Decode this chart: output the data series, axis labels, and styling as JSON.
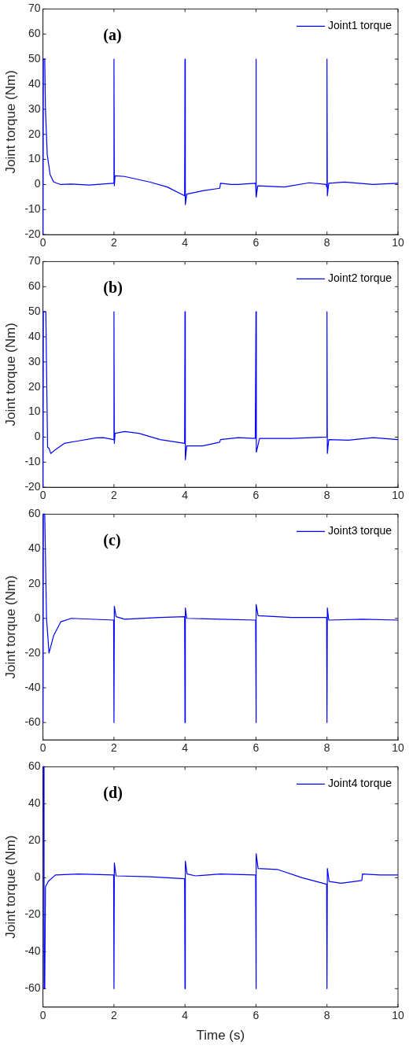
{
  "chart_data": [
    {
      "type": "line",
      "ylabel": "Joint torque (Nm)",
      "annotations": [
        "(a)"
      ],
      "legend": "top right",
      "grid": false,
      "xlim": [
        0,
        10
      ],
      "xticks": [
        0,
        2,
        4,
        6,
        8,
        10
      ],
      "ylim": [
        -20,
        70
      ],
      "yticks": [
        -20,
        -10,
        0,
        10,
        20,
        30,
        40,
        50,
        60,
        70
      ],
      "series": [
        {
          "name": "Joint1 torque",
          "color": "#0000ff",
          "x": [
            0,
            0.01,
            0.05,
            0.07,
            0.12,
            0.2,
            0.3,
            0.5,
            0.8,
            1.3,
            1.98,
            2.0,
            2.01,
            2.03,
            2.3,
            3,
            3.5,
            3.99,
            4.0,
            4.01,
            4.05,
            4.5,
            4.98,
            5.0,
            5.3,
            5.5,
            5.99,
            6.0,
            6.01,
            6.05,
            6.8,
            7.5,
            7.98,
            7.99,
            8.0,
            8.01,
            8.05,
            8.5,
            9.3,
            10
          ],
          "values": [
            -20,
            50,
            50,
            30,
            12,
            4,
            1,
            0,
            0.2,
            -0.2,
            0.5,
            50,
            -0.5,
            3.5,
            3.2,
            1,
            -1,
            -4.5,
            50,
            -8,
            -3.8,
            -2.5,
            -1.5,
            0.5,
            0,
            0,
            0.5,
            50,
            -5,
            -0.5,
            -1,
            0.7,
            0,
            -1,
            50,
            -4.5,
            0.5,
            1,
            0,
            0.5
          ]
        }
      ]
    },
    {
      "type": "line",
      "ylabel": "Joint torque (Nm)",
      "annotations": [
        "(b)"
      ],
      "legend": "top right",
      "grid": false,
      "xlim": [
        0,
        10
      ],
      "xticks": [
        0,
        2,
        4,
        6,
        8,
        10
      ],
      "ylim": [
        -20,
        70
      ],
      "yticks": [
        -20,
        -10,
        0,
        10,
        20,
        30,
        40,
        50,
        60,
        70
      ],
      "series": [
        {
          "name": "Joint2 torque",
          "color": "#0000ff",
          "x": [
            0,
            0.01,
            0.08,
            0.13,
            0.17,
            0.22,
            0.35,
            0.6,
            1,
            1.5,
            1.7,
            1.99,
            2.0,
            2.01,
            2.03,
            2.3,
            2.7,
            3.3,
            3.99,
            4.0,
            4.01,
            4.05,
            4.5,
            4.98,
            5.0,
            5.5,
            5.98,
            6.0,
            6.01,
            6.1,
            7,
            7.99,
            8.0,
            8.01,
            8.05,
            8.6,
            9.3,
            10
          ],
          "values": [
            -20,
            50,
            50,
            -4,
            -4.5,
            -6.5,
            -5,
            -2.5,
            -1.5,
            -0.3,
            -0.2,
            -1,
            50,
            -2.5,
            1.5,
            2.2,
            1.5,
            -1,
            -2.5,
            50,
            -9,
            -3.5,
            -3.5,
            -2,
            -1,
            -0.2,
            -0.5,
            50,
            -6,
            -0.5,
            -0.5,
            0,
            50,
            -6.5,
            -1,
            -1.2,
            -0.2,
            -1
          ]
        }
      ]
    },
    {
      "type": "line",
      "ylabel": "Joint torque (Nm)",
      "annotations": [
        "(c)"
      ],
      "legend": "top right",
      "grid": false,
      "xlim": [
        0,
        10
      ],
      "xticks": [
        0,
        2,
        4,
        6,
        8,
        10
      ],
      "ylim": [
        -70,
        60
      ],
      "yticks": [
        -60,
        -40,
        -20,
        0,
        20,
        40,
        60
      ],
      "series": [
        {
          "name": "Joint3 torque",
          "color": "#0000ff",
          "x": [
            0,
            0.01,
            0.05,
            0.1,
            0.17,
            0.3,
            0.5,
            0.8,
            1.99,
            2.0,
            2.01,
            2.06,
            2.3,
            3.3,
            3.99,
            4.0,
            4.01,
            4.05,
            5,
            5.99,
            6.0,
            6.01,
            6.06,
            7,
            7.99,
            8.0,
            8.01,
            8.05,
            9,
            10
          ],
          "values": [
            -60,
            60,
            60,
            0,
            -20,
            -10,
            -2,
            0,
            -1,
            -60,
            7,
            1,
            -0.5,
            0.5,
            1,
            -60,
            6,
            0,
            -0.5,
            -1,
            -60,
            8,
            1.5,
            0.5,
            0.5,
            -60,
            6,
            -1,
            -0.5,
            -1
          ]
        }
      ]
    },
    {
      "type": "line",
      "xlabel": "Time (s)",
      "ylabel": "Joint torque (Nm)",
      "annotations": [
        "(d)"
      ],
      "legend": "top right",
      "grid": false,
      "xlim": [
        0,
        10
      ],
      "xticks": [
        0,
        2,
        4,
        6,
        8,
        10
      ],
      "ylim": [
        -70,
        60
      ],
      "yticks": [
        -60,
        -40,
        -20,
        0,
        20,
        40,
        60
      ],
      "series": [
        {
          "name": "Joint4 torque",
          "color": "#0000ff",
          "x": [
            0,
            0.02,
            0.03,
            0.05,
            0.07,
            0.15,
            0.35,
            1,
            1.99,
            2.0,
            2.01,
            2.06,
            3,
            3.99,
            4.0,
            4.01,
            4.06,
            4.3,
            5,
            5.99,
            6.0,
            6.01,
            6.06,
            6.6,
            7.3,
            7.99,
            8.0,
            8.01,
            8.06,
            8.4,
            8.98,
            9.0,
            9.5,
            10
          ],
          "values": [
            60,
            60,
            -60,
            -60,
            -5,
            -2,
            1.5,
            2,
            1.5,
            -60,
            8,
            1,
            0.5,
            -0.5,
            -60,
            9,
            2,
            1,
            2,
            1.5,
            -60,
            13,
            5,
            4.5,
            0,
            -3.5,
            -60,
            5,
            -2,
            -3,
            -1.5,
            2,
            1.5,
            1.5
          ]
        }
      ]
    }
  ]
}
